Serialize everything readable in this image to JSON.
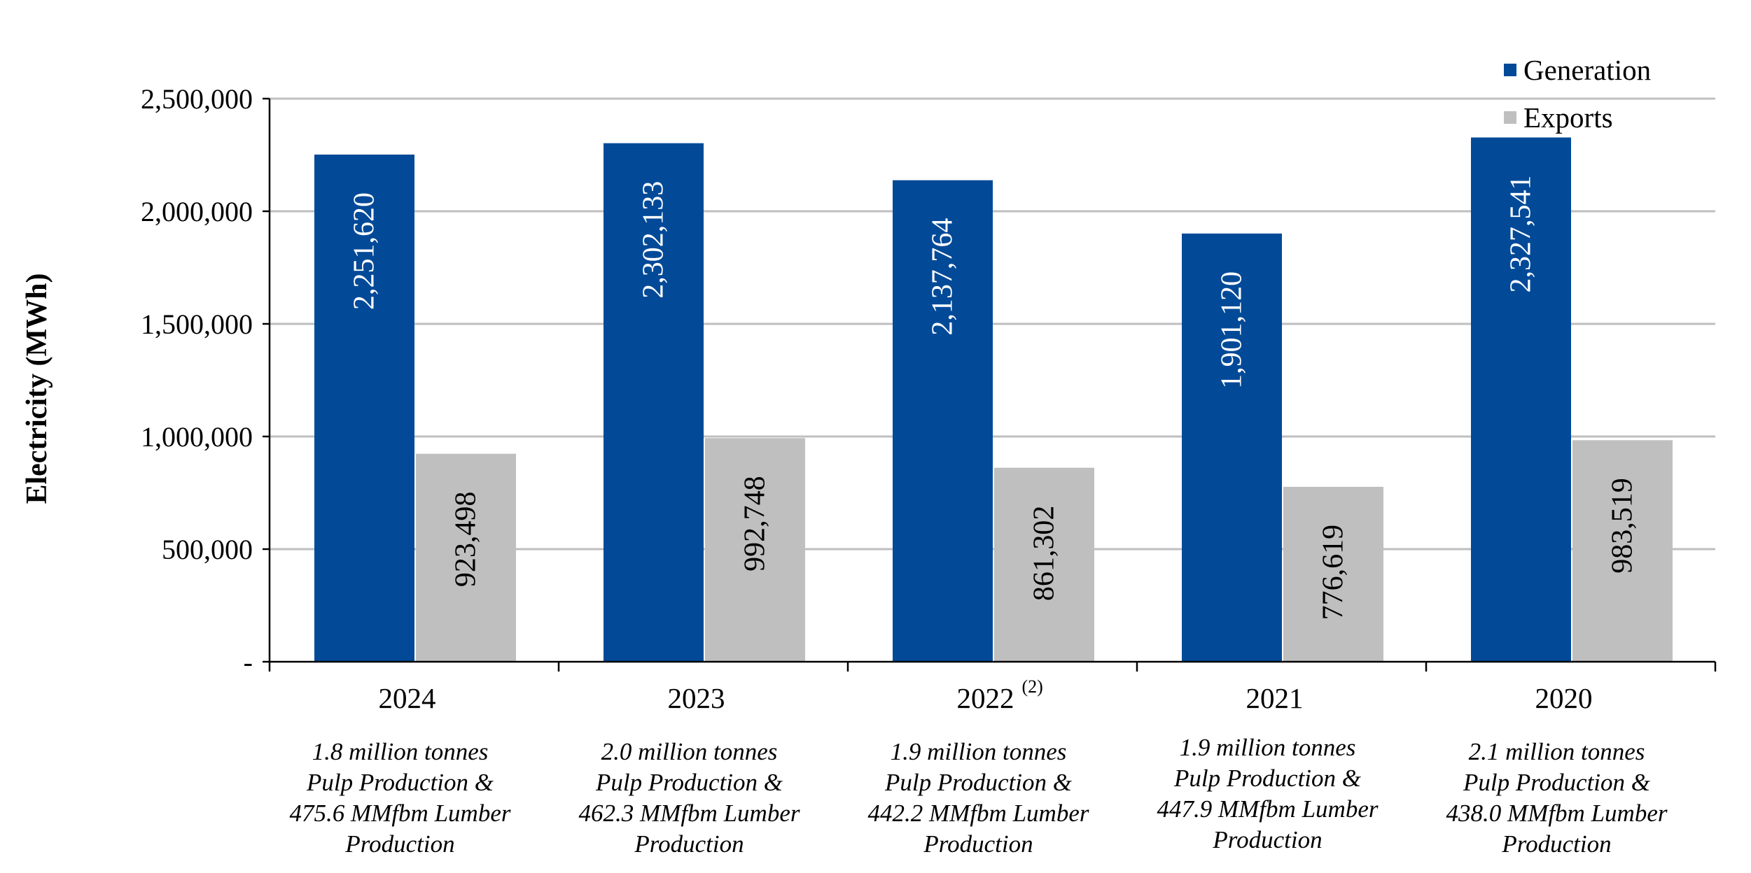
{
  "chart_data": {
    "type": "bar",
    "categories": [
      "2024",
      "2023",
      "2022",
      "2021",
      "2020"
    ],
    "category_superscripts": [
      "",
      "",
      "(2)",
      "",
      ""
    ],
    "series": [
      {
        "name": "Generation",
        "color": "#024A98",
        "label_color": "#ffffff",
        "values": [
          2251620,
          2302133,
          2137764,
          1901120,
          2327541
        ],
        "labels": [
          "2,251,620",
          "2,302,133",
          "2,137,764",
          "1,901,120",
          "2,327,541"
        ]
      },
      {
        "name": "Exports",
        "color": "#BFBFBF",
        "label_color": "#000000",
        "values": [
          923498,
          992748,
          861302,
          776619,
          983519
        ],
        "labels": [
          "923,498",
          "992,748",
          "861,302",
          "776,619",
          "983,519"
        ]
      }
    ],
    "ylabel": "Electricity (MWh)",
    "xlabel": "",
    "ylim": [
      0,
      2500000
    ],
    "yticks": [
      0,
      500000,
      1000000,
      1500000,
      2000000,
      2500000
    ],
    "ytick_labels": [
      "-",
      "500,000",
      "1,000,000",
      "1,500,000",
      "2,000,000",
      "2,500,000"
    ],
    "grid": true,
    "legend_position": "top-right",
    "category_notes": [
      [
        "1.8 million tonnes",
        "Pulp Production &",
        "475.6 MMfbm Lumber",
        "Production"
      ],
      [
        "2.0 million tonnes",
        "Pulp Production &",
        "462.3 MMfbm Lumber",
        "Production"
      ],
      [
        "1.9 million tonnes",
        "Pulp Production &",
        "442.2 MMfbm Lumber",
        "Production"
      ],
      [
        "1.9 million tonnes",
        "Pulp Production &",
        "447.9 MMfbm Lumber",
        "Production"
      ],
      [
        "2.1 million tonnes",
        "Pulp Production &",
        "438.0 MMfbm Lumber",
        "Production"
      ]
    ]
  }
}
